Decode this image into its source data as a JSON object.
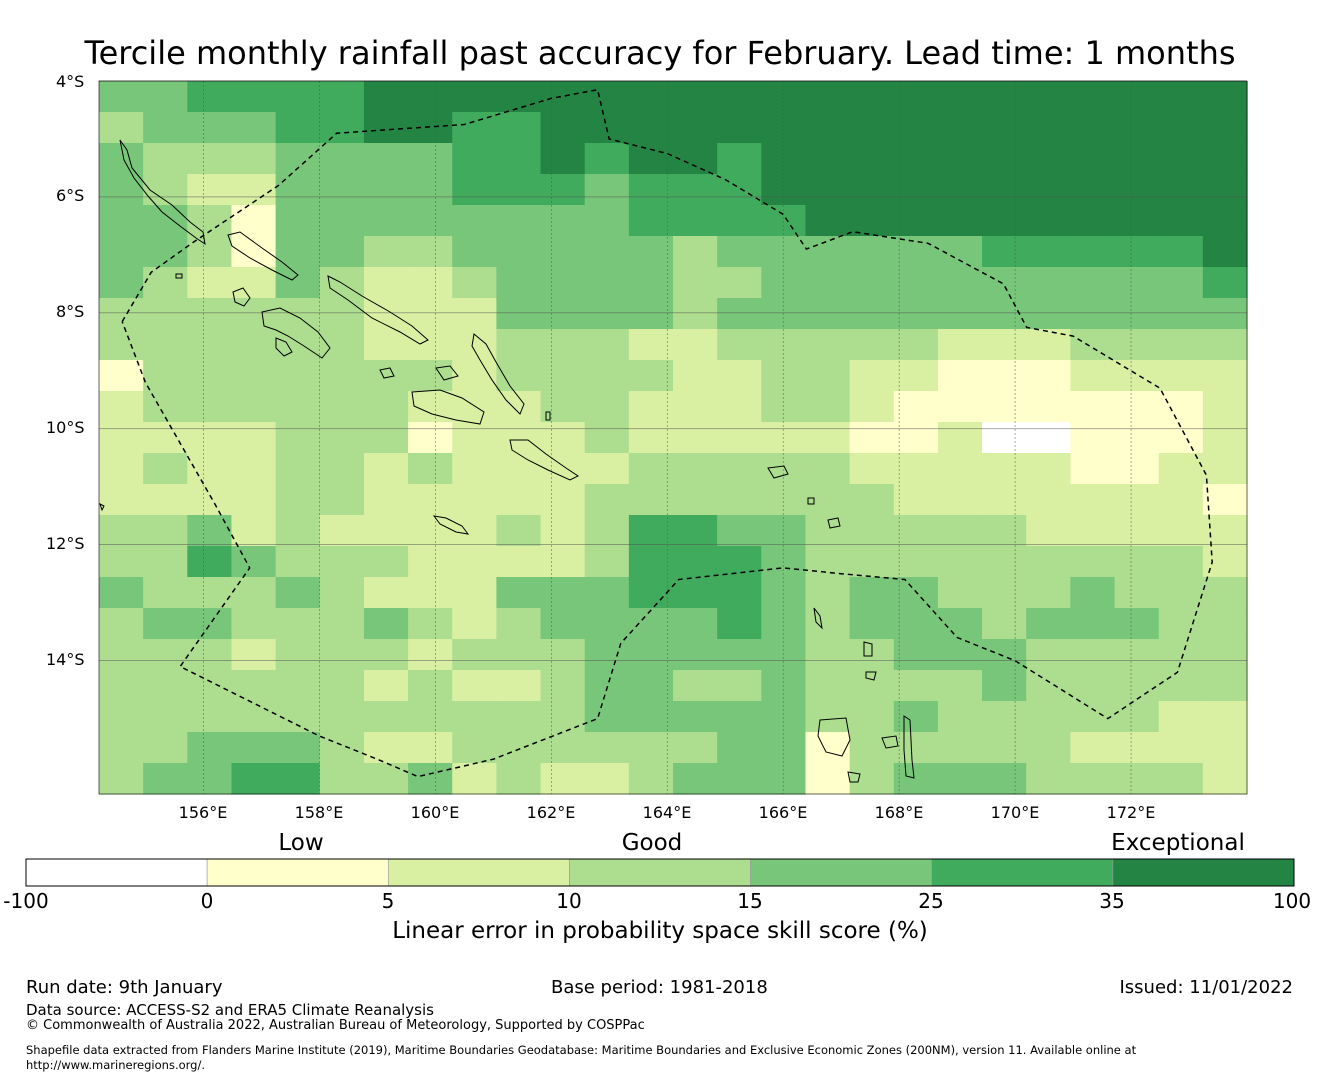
{
  "title": "Tercile monthly rainfall past accuracy for February. Lead time: 1 months",
  "map": {
    "lon_range": [
      154.2,
      174.0
    ],
    "lat_range": [
      -4.0,
      -16.3
    ],
    "grid_lons": [
      156,
      158,
      160,
      162,
      164,
      166,
      168,
      170,
      172
    ],
    "grid_lats": [
      -4,
      -6,
      -8,
      -10,
      -12,
      -14
    ],
    "lat_labels": [
      "4°S",
      "6°S",
      "8°S",
      "10°S",
      "12°S",
      "14°S"
    ],
    "lon_labels": [
      "156°E",
      "158°E",
      "160°E",
      "162°E",
      "164°E",
      "166°E",
      "168°E",
      "170°E",
      "172°E"
    ],
    "skill_grid_note": "Category codes per cell: 0=-100..0, 1=0..5, 2=5..10, 3=10..15, 4=15..25, 5=25..35, 6=35..100",
    "skill_grid": [
      "44555566666666666666666666",
      "34445566556666666666666666",
      "43334444556566566666666666",
      "43224444555455566666666666",
      "44314444444455556666666666",
      "44314433444443444444555556",
      "43224322344443344444444445",
      "33333322244443444444444444",
      "33333322233322333332223333",
      "13333333233332233221112222",
      "23333332223322233211111112",
      "22223331222322222112001112",
      "23223323222233333222221122",
      "22223322222333333322222221",
      "33423222232355443333322222",
      "33543332222355543333333332",
      "43334322244455543443334333",
      "34433343234444543444344433",
      "33323332333444443344433333",
      "33333323223443343333433333",
      "33333333333444443343333322",
      "33444322333333441333332222",
      "34455334232234441344433332"
    ],
    "eez_boundary_lonlat": [
      [
        154.6,
        -8.15
      ],
      [
        155.1,
        -7.3
      ],
      [
        155.8,
        -6.8
      ],
      [
        157.3,
        -5.8
      ],
      [
        158.3,
        -4.9
      ],
      [
        160.5,
        -4.75
      ],
      [
        162.0,
        -4.3
      ],
      [
        162.8,
        -4.15
      ],
      [
        163.0,
        -5.0
      ],
      [
        164.0,
        -5.25
      ],
      [
        165.0,
        -5.7
      ],
      [
        166.0,
        -6.3
      ],
      [
        166.4,
        -6.9
      ],
      [
        167.2,
        -6.6
      ],
      [
        168.5,
        -6.8
      ],
      [
        169.8,
        -7.5
      ],
      [
        170.2,
        -8.25
      ],
      [
        171.0,
        -8.4
      ],
      [
        172.5,
        -9.3
      ],
      [
        173.3,
        -10.8
      ],
      [
        173.4,
        -12.3
      ],
      [
        172.8,
        -14.2
      ],
      [
        171.6,
        -15.0
      ],
      [
        170.0,
        -14.0
      ],
      [
        169.0,
        -13.6
      ],
      [
        168.1,
        -12.6
      ],
      [
        167.0,
        -12.5
      ],
      [
        166.0,
        -12.4
      ],
      [
        164.2,
        -12.6
      ],
      [
        163.2,
        -13.7
      ],
      [
        162.8,
        -15.0
      ],
      [
        161.0,
        -15.7
      ],
      [
        159.7,
        -16.0
      ],
      [
        159.0,
        -15.7
      ],
      [
        158.0,
        -15.3
      ],
      [
        157.2,
        -14.9
      ],
      [
        155.6,
        -14.1
      ],
      [
        156.8,
        -12.4
      ],
      [
        156.2,
        -11.3
      ],
      [
        155.0,
        -9.2
      ],
      [
        154.6,
        -8.15
      ]
    ]
  },
  "colorbar": {
    "categories": [
      "Low",
      "Good",
      "Exceptional"
    ],
    "ticks": [
      "-100",
      "0",
      "5",
      "10",
      "15",
      "25",
      "35",
      "100"
    ],
    "colors": [
      "#ffffff",
      "#ffffcc",
      "#d9f0a3",
      "#addd8e",
      "#78c679",
      "#41ab5d",
      "#238443"
    ],
    "axis_label": "Linear error in probability space skill score (%)"
  },
  "footer": {
    "run_date": "Run date: 9th January",
    "base_period": "Base period: 1981-2018",
    "issued": "Issued: 11/01/2022",
    "data_source": "Data source: ACCESS-S2 and ERA5 Climate Reanalysis",
    "copyright": "© Commonwealth of Australia 2022, Australian Bureau of Meteorology, Supported by COSPPac",
    "shapefile_line1": "Shapefile data extracted from Flanders Marine Institute (2019), Maritime Boundaries Geodatabase: Maritime Boundaries and Exclusive Economic Zones (200NM), version 11. Available online at",
    "shapefile_line2": "http://www.marineregions.org/."
  }
}
